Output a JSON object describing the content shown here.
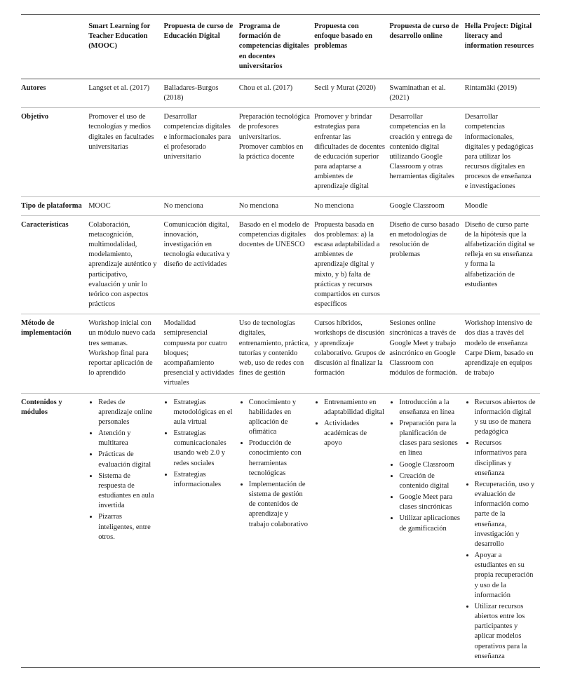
{
  "columns": [
    "",
    "Smart Learning for Teacher Education (MOOC)",
    "Propuesta de curso de Educación Digital",
    "Programa de formación de competencias digitales en docentes universitarios",
    "Propuesta con enfoque basado en problemas",
    "Propuesta de curso de desarrollo online",
    "Hella Project: Digital literacy and information resources"
  ],
  "rows": [
    {
      "label": "Autores",
      "cells": [
        "Langset et al. (2017)",
        "Balladares-Burgos (2018)",
        "Chou et al. (2017)",
        "Secil y Murat (2020)",
        "Swaminathan et al. (2021)",
        "Rintamäki (2019)"
      ]
    },
    {
      "label": "Objetivo",
      "cells": [
        "Promover el uso de tecnologías y medios digitales en facultades universitarias",
        "Desarrollar competencias digitales e informacionales para el profesorado universitario",
        "Preparación tecnológica de profesores universitarios. Promover cambios en la práctica docente",
        "Promover y brindar estrategias para enfrentar las dificultades de docentes de educación superior para adaptarse a ambientes de aprendizaje digital",
        "Desarrollar competencias en la creación y entrega de contenido digital utilizando Google Classroom y otras herramientas digitales",
        "Desarrollar competencias informacionales, digitales y pedagógicas para utilizar los recursos digitales en procesos de enseñanza e investigaciones"
      ]
    },
    {
      "label": "Tipo de plataforma",
      "cells": [
        "MOOC",
        "No menciona",
        "No menciona",
        "No menciona",
        "Google Classroom",
        "Moodle"
      ]
    },
    {
      "label": "Características",
      "cells": [
        "Colaboración, metacognición, multimodalidad, modelamiento, aprendizaje auténtico y participativo, evaluación y unir lo teórico con aspectos prácticos",
        "Comunicación digital, innovación, investigación en tecnología educativa y diseño de actividades",
        "Basado en el modelo de competencias digitales docentes de UNESCO",
        "Propuesta basada en dos problemas: a) la escasa adaptabilidad a ambientes de aprendizaje digital y mixto, y b) falta de prácticas y recursos compartidos en cursos específicos",
        "Diseño de curso basado en metodologías de resolución de problemas",
        "Diseño de curso parte de la hipótesis que la alfabetización digital se refleja en su enseñanza y forma la alfabetización de estudiantes"
      ]
    },
    {
      "label": "Método de implementación",
      "cells": [
        "Workshop inicial con un módulo nuevo cada tres semanas. Workshop final para reportar aplicación de lo aprendido",
        "Modalidad semipresencial compuesta por cuatro bloques; acompañamiento presencial y actividades virtuales",
        "Uso de tecnologías digitales, entrenamiento, práctica, tutorías y contenido web, uso de redes con fines de gestión",
        "Cursos híbridos, workshops de discusión y aprendizaje colaborativo. Grupos de discusión al finalizar la formación",
        "Sesiones online sincrónicas a través de Google Meet y trabajo asincrónico en Google Classroom con módulos de formación.",
        "Workshop intensivo de dos días a través del modelo de enseñanza Carpe Diem, basado en aprendizaje en equipos de trabajo"
      ]
    },
    {
      "label": "Contenidos y módulos",
      "type": "list",
      "cells": [
        [
          "Redes de aprendizaje online personales",
          "Atención y multitarea",
          "Prácticas de evaluación digital",
          "Sistema de respuesta de estudiantes en aula invertida",
          "Pizarras inteligentes, entre otros."
        ],
        [
          "Estrategias metodológicas en el aula virtual",
          "Estrategias comunicacionales usando web 2.0 y redes sociales",
          "Estrategias informacionales"
        ],
        [
          "Conocimiento y habilidades en aplicación de ofimática",
          "Producción de conocimiento con herramientas tecnológicas",
          "Implementación de sistema de gestión de contenidos de aprendizaje y trabajo colaborativo"
        ],
        [
          "Entrenamiento en adaptabilidad digital",
          "Actividades académicas de apoyo"
        ],
        [
          "Introducción a la enseñanza en línea",
          "Preparación para la planificación de clases para sesiones en línea",
          "Google Classroom",
          "Creación de contenido digital",
          "Google Meet para clases sincrónicas",
          "Utilizar aplicaciones de gamificación"
        ],
        [
          "Recursos abiertos de información digital y su uso de manera pedagógica",
          "Recursos informativos para disciplinas y enseñanza",
          "Recuperación, uso y evaluación de información como parte de la enseñanza, investigación y desarrollo",
          "Apoyar a estudiantes en su propia recuperación y uso de la información",
          "Utilizar recursos abiertos entre los participantes y aplicar modelos operativos para la enseñanza"
        ]
      ]
    }
  ]
}
